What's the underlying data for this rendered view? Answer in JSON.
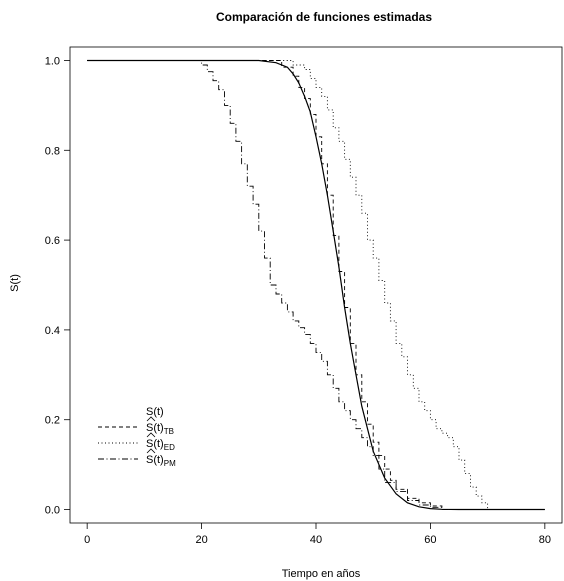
{
  "chart_data": {
    "type": "line",
    "title": "Comparación de funciones estimadas",
    "xlabel": "Tiempo en años",
    "ylabel": "S(t)",
    "xlim": [
      -3,
      83
    ],
    "ylim": [
      -0.03,
      1.03
    ],
    "xticks": [
      0,
      20,
      40,
      60,
      80
    ],
    "yticks": [
      0.0,
      0.2,
      0.4,
      0.6,
      0.8,
      1.0
    ],
    "xtick_labels": [
      "0",
      "20",
      "40",
      "60",
      "80"
    ],
    "ytick_labels": [
      "0.0",
      "0.2",
      "0.4",
      "0.6",
      "0.8",
      "1.0"
    ],
    "grid": false,
    "legend_position": "bottom-left",
    "series": [
      {
        "name": "S(t)",
        "legend_main": "S(t)",
        "legend_sub": "",
        "hat": false,
        "style": "solid",
        "step": false,
        "x": [
          0,
          30,
          33,
          35,
          36,
          37,
          38,
          39,
          40,
          41,
          42,
          43,
          44,
          45,
          46,
          47,
          48,
          49,
          50,
          52,
          54,
          56,
          58,
          60,
          62,
          65,
          80
        ],
        "y": [
          1.0,
          1.0,
          0.995,
          0.985,
          0.97,
          0.95,
          0.92,
          0.885,
          0.83,
          0.77,
          0.7,
          0.62,
          0.54,
          0.45,
          0.37,
          0.3,
          0.23,
          0.18,
          0.13,
          0.07,
          0.035,
          0.015,
          0.006,
          0.002,
          0.0005,
          0.0,
          0.0
        ]
      },
      {
        "name": "Ŝ(t)TB",
        "legend_main": "S(t)",
        "legend_sub": "TB",
        "hat": true,
        "style": "dashed",
        "step": true,
        "x": [
          0,
          32,
          34,
          36,
          37,
          38,
          39,
          40,
          41,
          42,
          43,
          44,
          45,
          46,
          47,
          48,
          49,
          50,
          51,
          52,
          53,
          54,
          56,
          58,
          60,
          62,
          80
        ],
        "y": [
          1.0,
          1.0,
          0.985,
          0.965,
          0.94,
          0.915,
          0.88,
          0.83,
          0.77,
          0.7,
          0.61,
          0.53,
          0.45,
          0.37,
          0.3,
          0.24,
          0.19,
          0.15,
          0.12,
          0.09,
          0.065,
          0.045,
          0.025,
          0.015,
          0.008,
          0.0,
          0.0
        ]
      },
      {
        "name": "Ŝ(t)ED",
        "legend_main": "S(t)",
        "legend_sub": "ED",
        "hat": true,
        "style": "dotted",
        "step": true,
        "x": [
          0,
          34,
          36,
          38,
          39,
          40,
          41,
          42,
          43,
          44,
          45,
          46,
          47,
          48,
          49,
          50,
          51,
          52,
          53,
          54,
          55,
          56,
          57,
          58,
          59,
          60,
          61,
          62,
          63,
          64,
          65,
          66,
          67,
          68,
          69,
          70,
          80
        ],
        "y": [
          1.0,
          1.0,
          0.99,
          0.98,
          0.96,
          0.94,
          0.92,
          0.89,
          0.85,
          0.82,
          0.78,
          0.74,
          0.7,
          0.66,
          0.6,
          0.56,
          0.51,
          0.46,
          0.42,
          0.37,
          0.34,
          0.3,
          0.27,
          0.24,
          0.22,
          0.2,
          0.18,
          0.17,
          0.16,
          0.14,
          0.11,
          0.08,
          0.05,
          0.03,
          0.015,
          0.0,
          0.0
        ]
      },
      {
        "name": "Ŝ(t)PM",
        "legend_main": "S(t)",
        "legend_sub": "PM",
        "hat": true,
        "style": "dotdash",
        "step": true,
        "x": [
          0,
          19,
          20,
          21,
          22,
          23,
          24,
          25,
          26,
          27,
          28,
          29,
          30,
          31,
          32,
          33,
          34,
          35,
          36,
          37,
          38,
          39,
          40,
          41,
          42,
          43,
          44,
          45,
          46,
          47,
          48,
          49,
          50,
          51,
          52,
          54,
          56,
          58,
          60,
          62,
          80
        ],
        "y": [
          1.0,
          1.0,
          0.99,
          0.975,
          0.955,
          0.935,
          0.9,
          0.86,
          0.82,
          0.77,
          0.72,
          0.68,
          0.62,
          0.56,
          0.5,
          0.48,
          0.46,
          0.44,
          0.42,
          0.405,
          0.39,
          0.37,
          0.35,
          0.33,
          0.3,
          0.27,
          0.24,
          0.22,
          0.2,
          0.18,
          0.16,
          0.14,
          0.12,
          0.09,
          0.06,
          0.04,
          0.02,
          0.01,
          0.005,
          0.0,
          0.0
        ]
      }
    ]
  }
}
